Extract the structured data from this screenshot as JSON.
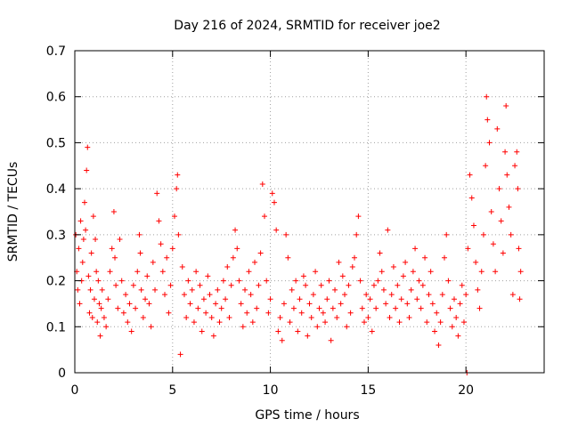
{
  "chart_data": {
    "type": "scatter",
    "title": "Day 216 of 2024, SRMTID for receiver joe2",
    "xlabel": "GPS time / hours",
    "ylabel": "SRMTID / TECUs",
    "xlim": [
      0,
      24
    ],
    "ylim": [
      0,
      0.7
    ],
    "xticks": [
      0,
      5,
      10,
      15,
      20
    ],
    "xtick_labels": [
      "0",
      "5",
      "10",
      "15",
      "20"
    ],
    "yticks": [
      0,
      0.1,
      0.2,
      0.3,
      0.4,
      0.5,
      0.6,
      0.7
    ],
    "ytick_labels": [
      "0",
      "0.1",
      "0.2",
      "0.3",
      "0.4",
      "0.5",
      "0.6",
      "0.7"
    ],
    "grid": true,
    "marker": "+",
    "series": [
      {
        "name": "SRMTID",
        "color": "#ff0000",
        "points": [
          [
            0.05,
            0.3
          ],
          [
            0.1,
            0.22
          ],
          [
            0.15,
            0.18
          ],
          [
            0.2,
            0.27
          ],
          [
            0.25,
            0.15
          ],
          [
            0.3,
            0.33
          ],
          [
            0.35,
            0.2
          ],
          [
            0.4,
            0.24
          ],
          [
            0.45,
            0.29
          ],
          [
            0.5,
            0.37
          ],
          [
            0.55,
            0.31
          ],
          [
            0.6,
            0.44
          ],
          [
            0.65,
            0.49
          ],
          [
            0.7,
            0.21
          ],
          [
            0.75,
            0.13
          ],
          [
            0.8,
            0.18
          ],
          [
            0.85,
            0.26
          ],
          [
            0.9,
            0.12
          ],
          [
            0.95,
            0.34
          ],
          [
            1.0,
            0.16
          ],
          [
            1.05,
            0.29
          ],
          [
            1.1,
            0.22
          ],
          [
            1.15,
            0.11
          ],
          [
            1.2,
            0.2
          ],
          [
            1.25,
            0.15
          ],
          [
            1.3,
            0.08
          ],
          [
            1.35,
            0.14
          ],
          [
            1.4,
            0.18
          ],
          [
            1.5,
            0.12
          ],
          [
            1.6,
            0.1
          ],
          [
            1.7,
            0.16
          ],
          [
            1.8,
            0.22
          ],
          [
            1.9,
            0.27
          ],
          [
            2.0,
            0.35
          ],
          [
            2.05,
            0.25
          ],
          [
            2.1,
            0.19
          ],
          [
            2.2,
            0.14
          ],
          [
            2.3,
            0.29
          ],
          [
            2.4,
            0.2
          ],
          [
            2.5,
            0.13
          ],
          [
            2.6,
            0.17
          ],
          [
            2.7,
            0.11
          ],
          [
            2.8,
            0.15
          ],
          [
            2.9,
            0.09
          ],
          [
            3.0,
            0.19
          ],
          [
            3.1,
            0.14
          ],
          [
            3.2,
            0.22
          ],
          [
            3.3,
            0.3
          ],
          [
            3.35,
            0.26
          ],
          [
            3.4,
            0.18
          ],
          [
            3.5,
            0.12
          ],
          [
            3.6,
            0.16
          ],
          [
            3.7,
            0.21
          ],
          [
            3.8,
            0.15
          ],
          [
            3.9,
            0.1
          ],
          [
            4.0,
            0.24
          ],
          [
            4.1,
            0.18
          ],
          [
            4.2,
            0.39
          ],
          [
            4.3,
            0.33
          ],
          [
            4.4,
            0.28
          ],
          [
            4.5,
            0.22
          ],
          [
            4.6,
            0.17
          ],
          [
            4.7,
            0.25
          ],
          [
            4.8,
            0.13
          ],
          [
            4.9,
            0.19
          ],
          [
            5.0,
            0.27
          ],
          [
            5.1,
            0.34
          ],
          [
            5.2,
            0.4
          ],
          [
            5.25,
            0.43
          ],
          [
            5.3,
            0.3
          ],
          [
            5.4,
            0.04
          ],
          [
            5.5,
            0.23
          ],
          [
            5.6,
            0.17
          ],
          [
            5.7,
            0.12
          ],
          [
            5.8,
            0.2
          ],
          [
            5.9,
            0.15
          ],
          [
            6.0,
            0.18
          ],
          [
            6.1,
            0.11
          ],
          [
            6.2,
            0.22
          ],
          [
            6.3,
            0.14
          ],
          [
            6.4,
            0.19
          ],
          [
            6.5,
            0.09
          ],
          [
            6.6,
            0.16
          ],
          [
            6.7,
            0.13
          ],
          [
            6.8,
            0.21
          ],
          [
            6.9,
            0.17
          ],
          [
            7.0,
            0.12
          ],
          [
            7.1,
            0.08
          ],
          [
            7.2,
            0.15
          ],
          [
            7.3,
            0.18
          ],
          [
            7.4,
            0.11
          ],
          [
            7.5,
            0.14
          ],
          [
            7.6,
            0.2
          ],
          [
            7.7,
            0.16
          ],
          [
            7.8,
            0.23
          ],
          [
            7.9,
            0.12
          ],
          [
            8.0,
            0.19
          ],
          [
            8.1,
            0.25
          ],
          [
            8.2,
            0.31
          ],
          [
            8.3,
            0.27
          ],
          [
            8.4,
            0.2
          ],
          [
            8.5,
            0.15
          ],
          [
            8.6,
            0.1
          ],
          [
            8.7,
            0.18
          ],
          [
            8.8,
            0.13
          ],
          [
            8.9,
            0.22
          ],
          [
            9.0,
            0.17
          ],
          [
            9.1,
            0.11
          ],
          [
            9.2,
            0.24
          ],
          [
            9.3,
            0.14
          ],
          [
            9.4,
            0.19
          ],
          [
            9.5,
            0.26
          ],
          [
            9.6,
            0.41
          ],
          [
            9.7,
            0.34
          ],
          [
            9.8,
            0.2
          ],
          [
            9.9,
            0.13
          ],
          [
            10.0,
            0.16
          ],
          [
            10.1,
            0.39
          ],
          [
            10.2,
            0.37
          ],
          [
            10.3,
            0.31
          ],
          [
            10.4,
            0.09
          ],
          [
            10.5,
            0.12
          ],
          [
            10.6,
            0.07
          ],
          [
            10.7,
            0.15
          ],
          [
            10.8,
            0.3
          ],
          [
            10.9,
            0.25
          ],
          [
            11.0,
            0.11
          ],
          [
            11.1,
            0.18
          ],
          [
            11.2,
            0.14
          ],
          [
            11.3,
            0.2
          ],
          [
            11.4,
            0.09
          ],
          [
            11.5,
            0.16
          ],
          [
            11.6,
            0.13
          ],
          [
            11.7,
            0.21
          ],
          [
            11.8,
            0.19
          ],
          [
            11.9,
            0.08
          ],
          [
            12.0,
            0.15
          ],
          [
            12.1,
            0.12
          ],
          [
            12.2,
            0.17
          ],
          [
            12.3,
            0.22
          ],
          [
            12.4,
            0.1
          ],
          [
            12.5,
            0.14
          ],
          [
            12.6,
            0.19
          ],
          [
            12.7,
            0.13
          ],
          [
            12.8,
            0.11
          ],
          [
            12.9,
            0.16
          ],
          [
            13.0,
            0.2
          ],
          [
            13.1,
            0.07
          ],
          [
            13.2,
            0.14
          ],
          [
            13.3,
            0.18
          ],
          [
            13.4,
            0.12
          ],
          [
            13.5,
            0.24
          ],
          [
            13.6,
            0.15
          ],
          [
            13.7,
            0.21
          ],
          [
            13.8,
            0.17
          ],
          [
            13.9,
            0.1
          ],
          [
            14.0,
            0.19
          ],
          [
            14.1,
            0.13
          ],
          [
            14.2,
            0.23
          ],
          [
            14.3,
            0.25
          ],
          [
            14.4,
            0.3
          ],
          [
            14.5,
            0.34
          ],
          [
            14.6,
            0.2
          ],
          [
            14.7,
            0.14
          ],
          [
            14.8,
            0.11
          ],
          [
            14.9,
            0.17
          ],
          [
            15.0,
            0.12
          ],
          [
            15.1,
            0.16
          ],
          [
            15.2,
            0.09
          ],
          [
            15.3,
            0.19
          ],
          [
            15.4,
            0.14
          ],
          [
            15.5,
            0.2
          ],
          [
            15.6,
            0.26
          ],
          [
            15.7,
            0.22
          ],
          [
            15.8,
            0.18
          ],
          [
            15.9,
            0.15
          ],
          [
            16.0,
            0.31
          ],
          [
            16.1,
            0.12
          ],
          [
            16.2,
            0.17
          ],
          [
            16.3,
            0.23
          ],
          [
            16.4,
            0.14
          ],
          [
            16.5,
            0.19
          ],
          [
            16.6,
            0.11
          ],
          [
            16.7,
            0.16
          ],
          [
            16.8,
            0.21
          ],
          [
            16.9,
            0.24
          ],
          [
            17.0,
            0.15
          ],
          [
            17.1,
            0.12
          ],
          [
            17.2,
            0.18
          ],
          [
            17.3,
            0.22
          ],
          [
            17.4,
            0.27
          ],
          [
            17.5,
            0.16
          ],
          [
            17.6,
            0.2
          ],
          [
            17.7,
            0.14
          ],
          [
            17.8,
            0.19
          ],
          [
            17.9,
            0.25
          ],
          [
            18.0,
            0.11
          ],
          [
            18.1,
            0.17
          ],
          [
            18.2,
            0.22
          ],
          [
            18.3,
            0.15
          ],
          [
            18.4,
            0.09
          ],
          [
            18.5,
            0.13
          ],
          [
            18.6,
            0.06
          ],
          [
            18.7,
            0.11
          ],
          [
            18.8,
            0.17
          ],
          [
            18.9,
            0.25
          ],
          [
            19.0,
            0.3
          ],
          [
            19.1,
            0.2
          ],
          [
            19.2,
            0.14
          ],
          [
            19.3,
            0.1
          ],
          [
            19.4,
            0.16
          ],
          [
            19.5,
            0.12
          ],
          [
            19.6,
            0.08
          ],
          [
            19.7,
            0.15
          ],
          [
            19.8,
            0.19
          ],
          [
            19.9,
            0.11
          ],
          [
            20.0,
            0.17
          ],
          [
            20.05,
            0.0
          ],
          [
            20.1,
            0.27
          ],
          [
            20.2,
            0.43
          ],
          [
            20.3,
            0.38
          ],
          [
            20.4,
            0.32
          ],
          [
            20.5,
            0.24
          ],
          [
            20.6,
            0.18
          ],
          [
            20.7,
            0.14
          ],
          [
            20.8,
            0.22
          ],
          [
            20.9,
            0.3
          ],
          [
            21.0,
            0.45
          ],
          [
            21.05,
            0.6
          ],
          [
            21.1,
            0.55
          ],
          [
            21.2,
            0.5
          ],
          [
            21.3,
            0.35
          ],
          [
            21.4,
            0.28
          ],
          [
            21.5,
            0.22
          ],
          [
            21.6,
            0.53
          ],
          [
            21.7,
            0.4
          ],
          [
            21.8,
            0.33
          ],
          [
            21.9,
            0.26
          ],
          [
            22.0,
            0.48
          ],
          [
            22.05,
            0.58
          ],
          [
            22.1,
            0.43
          ],
          [
            22.2,
            0.36
          ],
          [
            22.3,
            0.3
          ],
          [
            22.4,
            0.17
          ],
          [
            22.5,
            0.45
          ],
          [
            22.6,
            0.48
          ],
          [
            22.65,
            0.4
          ],
          [
            22.7,
            0.27
          ],
          [
            22.75,
            0.16
          ],
          [
            22.8,
            0.22
          ]
        ]
      }
    ]
  }
}
